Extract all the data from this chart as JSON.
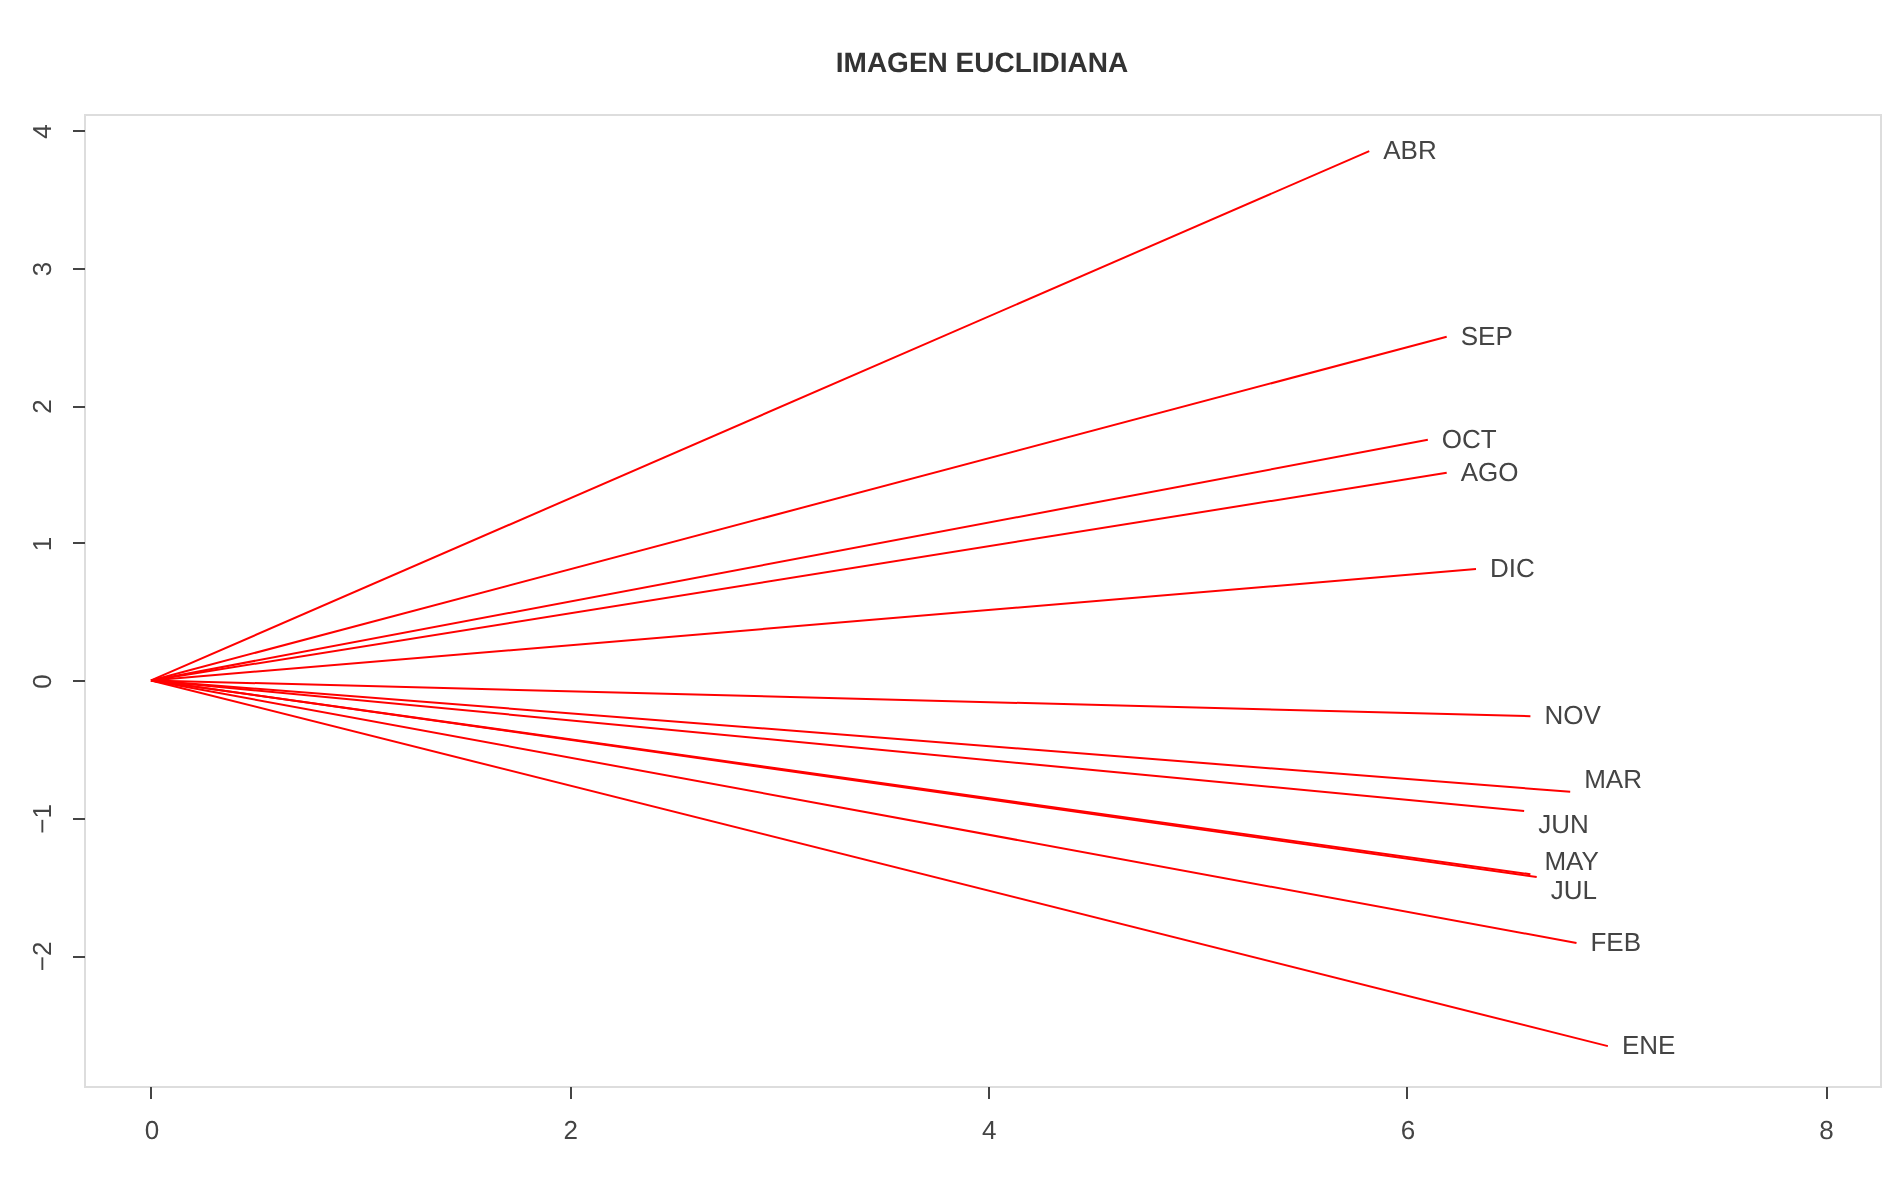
{
  "chart_data": {
    "type": "line",
    "title": "IMAGEN EUCLIDIANA",
    "xlim": [
      -0.32,
      8.26
    ],
    "xticks": [
      0,
      2,
      4,
      6,
      8
    ],
    "ylim": [
      -2.95,
      4.12
    ],
    "yticks": [
      -2,
      -1,
      0,
      1,
      2,
      3,
      4
    ],
    "grid": false,
    "marker": "none",
    "line_style": "solid",
    "series": [
      {
        "name": "ENE",
        "color": "#ff0000",
        "x": [
          0,
          6.96
        ],
        "values": [
          0,
          -2.66
        ]
      },
      {
        "name": "FEB",
        "color": "#ff0000",
        "x": [
          0,
          6.81
        ],
        "values": [
          0,
          -1.91
        ]
      },
      {
        "name": "MAR",
        "color": "#ff0000",
        "x": [
          0,
          6.78
        ],
        "values": [
          0,
          -0.81
        ]
      },
      {
        "name": "ABR",
        "color": "#ff0000",
        "x": [
          0,
          5.82
        ],
        "values": [
          0,
          3.85
        ]
      },
      {
        "name": "MAY",
        "color": "#ff0000",
        "x": [
          0,
          6.59
        ],
        "values": [
          0,
          -1.41
        ]
      },
      {
        "name": "JUN",
        "color": "#ff0000",
        "x": [
          0,
          6.56
        ],
        "values": [
          0,
          -0.95
        ]
      },
      {
        "name": "JUL",
        "color": "#ff0000",
        "x": [
          0,
          6.62
        ],
        "values": [
          0,
          -1.43
        ]
      },
      {
        "name": "AGO",
        "color": "#ff0000",
        "x": [
          0,
          6.19
        ],
        "values": [
          0,
          1.51
        ]
      },
      {
        "name": "SEP",
        "color": "#ff0000",
        "x": [
          0,
          6.19
        ],
        "values": [
          0,
          2.5
        ]
      },
      {
        "name": "OCT",
        "color": "#ff0000",
        "x": [
          0,
          6.1
        ],
        "values": [
          0,
          1.75
        ]
      },
      {
        "name": "NOV",
        "color": "#ff0000",
        "x": [
          0,
          6.59
        ],
        "values": [
          0,
          -0.26
        ]
      },
      {
        "name": "DIC",
        "color": "#ff0000",
        "x": [
          0,
          6.33
        ],
        "values": [
          0,
          0.81
        ]
      }
    ]
  }
}
